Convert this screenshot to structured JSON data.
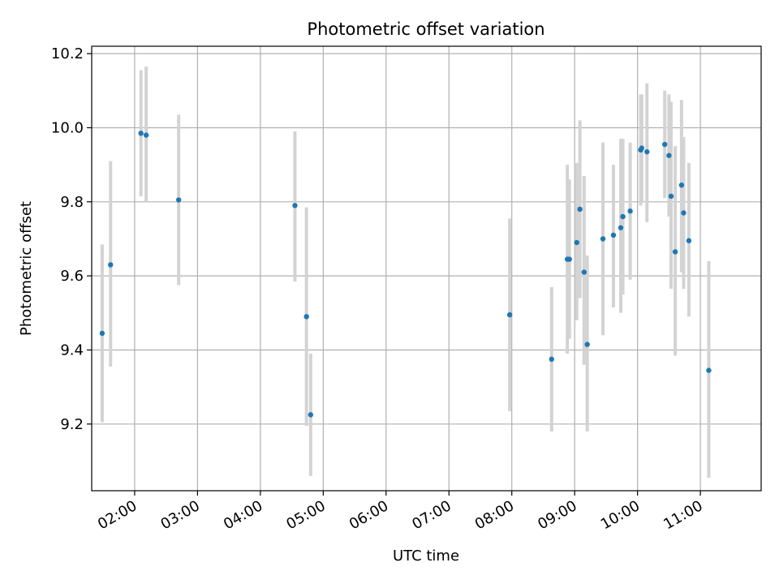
{
  "chart_data": {
    "type": "scatter",
    "title": "Photometric offset variation",
    "xlabel": "UTC time",
    "ylabel": "Photometric offset",
    "grid": true,
    "x_tick_labels": [
      "02:00",
      "03:00",
      "04:00",
      "05:00",
      "06:00",
      "07:00",
      "08:00",
      "09:00",
      "10:00",
      "11:00"
    ],
    "y_tick_labels": [
      "9.2",
      "9.4",
      "9.6",
      "9.8",
      "10.0",
      "10.2"
    ],
    "xlim": [
      "01:19",
      "11:58"
    ],
    "ylim": [
      9.02,
      10.22
    ],
    "colors": {
      "point": "#1f77b4",
      "errorbar": "#d3d3d3",
      "grid": "#b0b0b0"
    },
    "points": [
      {
        "x": "01:29",
        "y": 9.445,
        "ylow": 9.205,
        "yhigh": 9.685
      },
      {
        "x": "01:37",
        "y": 9.63,
        "ylow": 9.355,
        "yhigh": 9.91
      },
      {
        "x": "02:06",
        "y": 9.985,
        "ylow": 9.815,
        "yhigh": 10.155
      },
      {
        "x": "02:11",
        "y": 9.98,
        "ylow": 9.8,
        "yhigh": 10.165
      },
      {
        "x": "02:42",
        "y": 9.805,
        "ylow": 9.575,
        "yhigh": 10.035
      },
      {
        "x": "04:33",
        "y": 9.79,
        "ylow": 9.585,
        "yhigh": 9.99
      },
      {
        "x": "04:44",
        "y": 9.49,
        "ylow": 9.195,
        "yhigh": 9.785
      },
      {
        "x": "04:48",
        "y": 9.225,
        "ylow": 9.06,
        "yhigh": 9.39
      },
      {
        "x": "07:58",
        "y": 9.495,
        "ylow": 9.235,
        "yhigh": 9.755
      },
      {
        "x": "08:38",
        "y": 9.375,
        "ylow": 9.18,
        "yhigh": 9.57
      },
      {
        "x": "08:53",
        "y": 9.645,
        "ylow": 9.39,
        "yhigh": 9.9
      },
      {
        "x": "08:55",
        "y": 9.645,
        "ylow": 9.43,
        "yhigh": 9.86
      },
      {
        "x": "09:02",
        "y": 9.69,
        "ylow": 9.48,
        "yhigh": 9.905
      },
      {
        "x": "09:05",
        "y": 9.78,
        "ylow": 9.54,
        "yhigh": 10.02
      },
      {
        "x": "09:09",
        "y": 9.61,
        "ylow": 9.36,
        "yhigh": 9.87
      },
      {
        "x": "09:12",
        "y": 9.415,
        "ylow": 9.18,
        "yhigh": 9.655
      },
      {
        "x": "09:27",
        "y": 9.7,
        "ylow": 9.44,
        "yhigh": 9.96
      },
      {
        "x": "09:37",
        "y": 9.71,
        "ylow": 9.515,
        "yhigh": 9.9
      },
      {
        "x": "09:44",
        "y": 9.73,
        "ylow": 9.5,
        "yhigh": 9.97
      },
      {
        "x": "09:46",
        "y": 9.76,
        "ylow": 9.55,
        "yhigh": 9.97
      },
      {
        "x": "09:53",
        "y": 9.775,
        "ylow": 9.59,
        "yhigh": 9.96
      },
      {
        "x": "10:03",
        "y": 9.94,
        "ylow": 9.79,
        "yhigh": 10.09
      },
      {
        "x": "10:04",
        "y": 9.945,
        "ylow": 9.8,
        "yhigh": 10.09
      },
      {
        "x": "10:09",
        "y": 9.935,
        "ylow": 9.745,
        "yhigh": 10.12
      },
      {
        "x": "10:26",
        "y": 9.955,
        "ylow": 9.81,
        "yhigh": 10.1
      },
      {
        "x": "10:30",
        "y": 9.925,
        "ylow": 9.76,
        "yhigh": 10.09
      },
      {
        "x": "10:32",
        "y": 9.815,
        "ylow": 9.565,
        "yhigh": 10.07
      },
      {
        "x": "10:36",
        "y": 9.665,
        "ylow": 9.385,
        "yhigh": 9.95
      },
      {
        "x": "10:42",
        "y": 9.845,
        "ylow": 9.61,
        "yhigh": 10.075
      },
      {
        "x": "10:44",
        "y": 9.77,
        "ylow": 9.565,
        "yhigh": 9.975
      },
      {
        "x": "10:49",
        "y": 9.695,
        "ylow": 9.49,
        "yhigh": 9.905
      },
      {
        "x": "11:08",
        "y": 9.345,
        "ylow": 9.055,
        "yhigh": 9.64
      }
    ]
  }
}
